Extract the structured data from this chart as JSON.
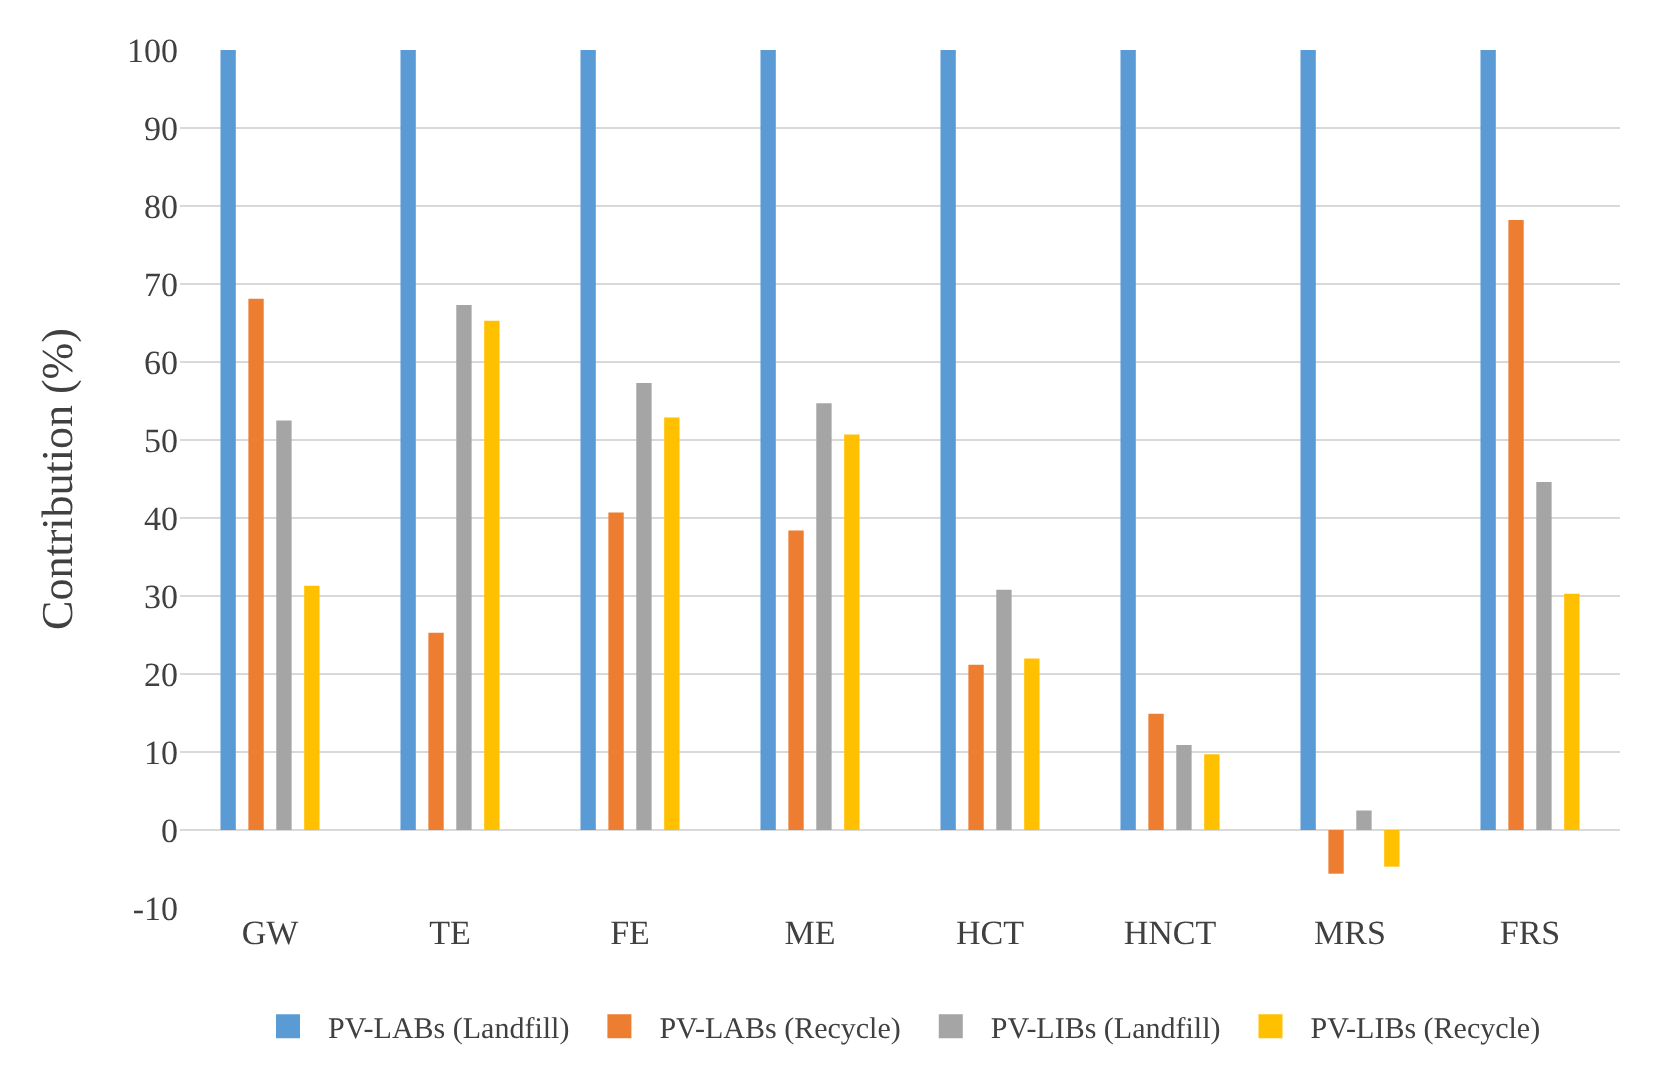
{
  "chart_data": {
    "type": "bar",
    "ylabel": "Contribution (%)",
    "categories": [
      "GW",
      "TE",
      "FE",
      "ME",
      "HCT",
      "HNCT",
      "MRS",
      "FRS"
    ],
    "series": [
      {
        "name": "PV-LABs (Landfill)",
        "color": "#5b9bd5",
        "values": [
          100,
          100,
          100,
          100,
          100,
          100,
          100,
          100
        ]
      },
      {
        "name": "PV-LABs (Recycle)",
        "color": "#ed7d31",
        "values": [
          68.1,
          25.3,
          40.7,
          38.4,
          21.2,
          14.9,
          -5.6,
          78.2
        ]
      },
      {
        "name": "PV-LIBs (Landfill)",
        "color": "#a5a5a5",
        "values": [
          52.5,
          67.3,
          57.3,
          54.7,
          30.8,
          10.9,
          2.5,
          44.6
        ]
      },
      {
        "name": "PV-LIBs (Recycle)",
        "color": "#ffc000",
        "values": [
          31.3,
          65.3,
          52.9,
          50.7,
          22.0,
          9.7,
          -4.7,
          30.3
        ]
      }
    ],
    "ylim": [
      -10,
      100
    ],
    "yticks": [
      -10,
      0,
      10,
      20,
      30,
      40,
      50,
      60,
      70,
      80,
      90,
      100
    ],
    "grid": "y",
    "legend": "bottom"
  }
}
